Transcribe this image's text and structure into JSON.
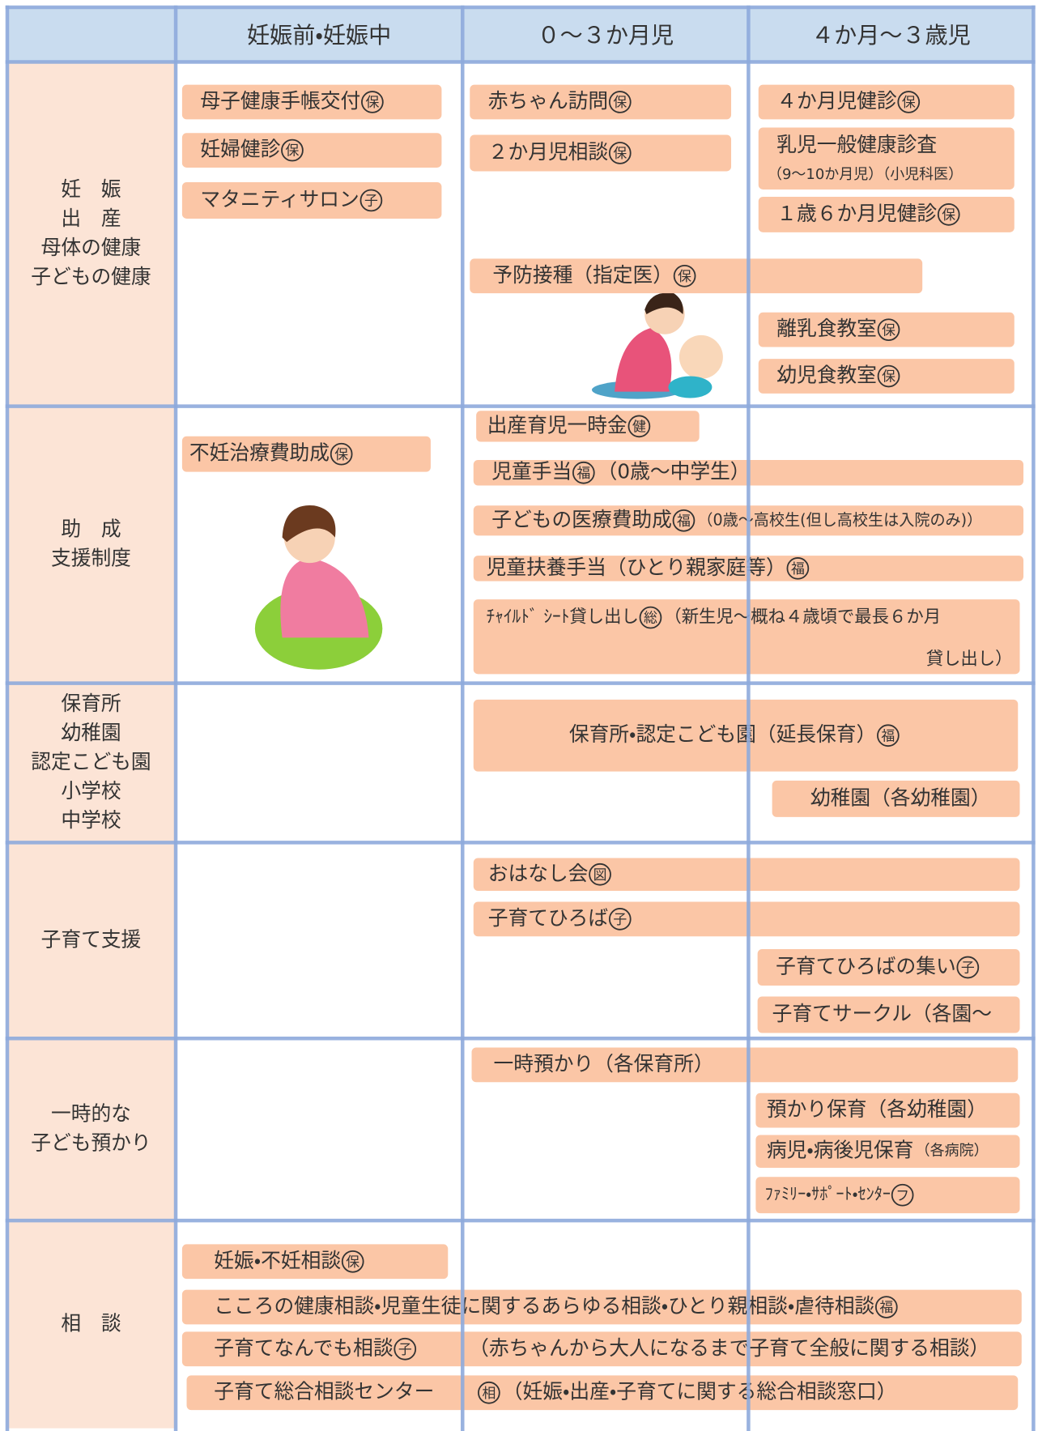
{
  "header": {
    "columns": [
      "妊娠前・妊娠中",
      "０〜３か月児",
      "４か月〜３歳児"
    ]
  },
  "sections": [
    {
      "label": [
        "妊　娠",
        "出　産",
        "母体の健康",
        "子どもの健康"
      ],
      "items": [
        {
          "text": "母子健康手帳交付",
          "badge": "保"
        },
        {
          "text": "妊婦健診",
          "badge": "保"
        },
        {
          "text": "マタニティサロン",
          "badge": "子"
        },
        {
          "text": "赤ちゃん訪問",
          "badge": "保"
        },
        {
          "text": "２か月児相談",
          "badge": "保"
        },
        {
          "text": "４か月児健診",
          "badge": "保"
        },
        {
          "text": "乳児一般健康診査",
          "sub": "（9〜10か月児）（小児科医）"
        },
        {
          "text": "１歳６か月児健診",
          "badge": "保"
        },
        {
          "text": "予防接種（指定医）",
          "badge": "保"
        },
        {
          "text": "離乳食教室",
          "badge": "保"
        },
        {
          "text": "幼児食教室",
          "badge": "保"
        }
      ]
    },
    {
      "label": [
        "助　成",
        "支援制度"
      ],
      "items": [
        {
          "text": "不妊治療費助成",
          "badge": "保"
        },
        {
          "text": "出産育児一時金",
          "badge": "健"
        },
        {
          "text": "児童手当",
          "badge": "福",
          "note": "（0歳〜中学生）"
        },
        {
          "text": "子どもの医療費助成",
          "badge": "福",
          "note": "（0歳〜高校生(但し高校生は入院のみ)）"
        },
        {
          "text": "児童扶養手当（ひとり親家庭等）",
          "badge": "福"
        },
        {
          "text": "ﾁｬｲﾙﾄﾞ ｼｰﾄ貸し出し",
          "badge": "総",
          "note": "（新生児〜概ね４歳頃で最長６か月",
          "sub": "貸し出し）"
        }
      ]
    },
    {
      "label": [
        "保育所",
        "幼稚園",
        "認定こども園",
        "小学校",
        "中学校"
      ],
      "items": [
        {
          "text": "保育所・認定こども園（延長保育）",
          "badge": "福"
        },
        {
          "text": "幼稚園（各幼稚園）"
        }
      ]
    },
    {
      "label": [
        "子育て支援"
      ],
      "items": [
        {
          "text": "おはなし会",
          "badge": "図"
        },
        {
          "text": "子育てひろば",
          "badge": "子"
        },
        {
          "text": "子育てひろばの集い",
          "badge": "子"
        },
        {
          "text": "子育てサークル（各園〜"
        }
      ]
    },
    {
      "label": [
        "一時的な",
        "子ども預かり"
      ],
      "items": [
        {
          "text": "一時預かり（各保育所）"
        },
        {
          "text": "預かり保育（各幼稚園）"
        },
        {
          "text": "病児・病後児保育",
          "note": "（各病院）"
        },
        {
          "text": "ﾌｧﾐﾘｰ・ｻﾎﾟｰﾄ・ｾﾝﾀｰ",
          "badge": "フ"
        }
      ]
    },
    {
      "label": [
        "相　談"
      ],
      "items": [
        {
          "text": "妊娠・不妊相談",
          "badge": "保"
        },
        {
          "text": "こころの健康相談・児童生徒に関するあらゆる相談・ひとり親相談・虐待相談",
          "badge": "福"
        },
        {
          "text": "子育てなんでも相談",
          "badge": "子",
          "note": "（赤ちゃんから大人になるまで子育て全般に関する相談）"
        },
        {
          "text": "子育て総合相談センター",
          "badge": "相",
          "note": "（妊娠・出産・子育てに関する総合相談窓口）"
        }
      ]
    }
  ]
}
